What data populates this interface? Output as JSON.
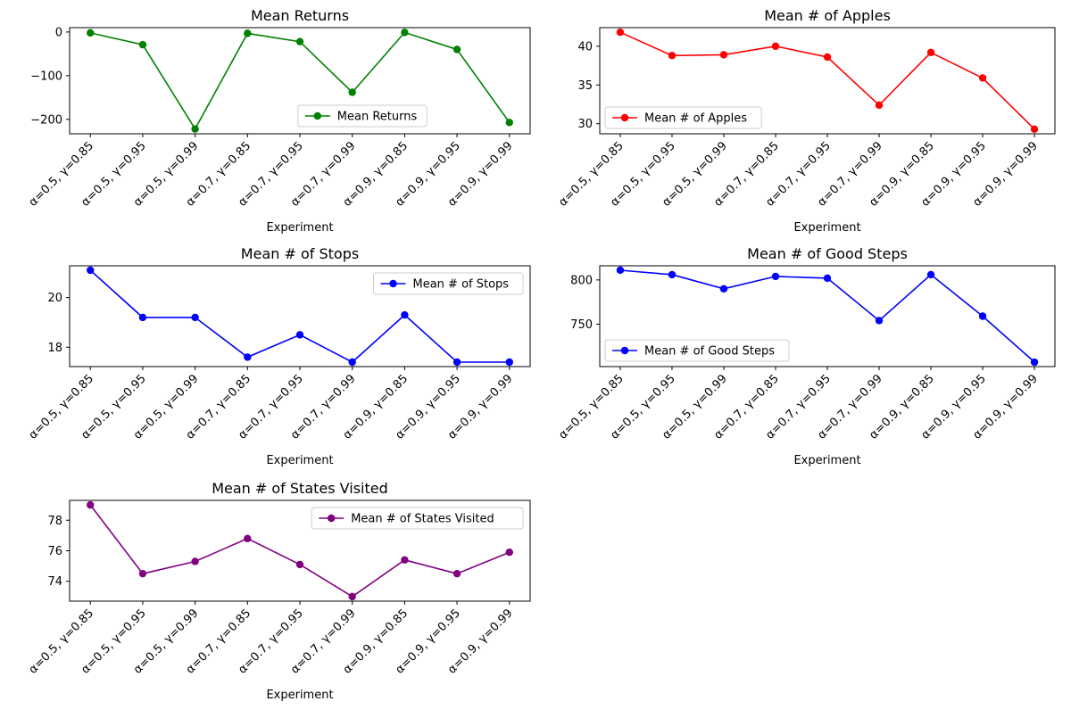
{
  "chart_data": [
    {
      "type": "line",
      "title": "Mean Returns",
      "xlabel": "Experiment",
      "ylabel": "",
      "categories": [
        "α=0.5, γ=0.85",
        "α=0.5, γ=0.95",
        "α=0.5, γ=0.99",
        "α=0.7, γ=0.85",
        "α=0.7, γ=0.95",
        "α=0.7, γ=0.99",
        "α=0.9, γ=0.85",
        "α=0.9, γ=0.95",
        "α=0.9, γ=0.99"
      ],
      "series": [
        {
          "name": "Mean Returns",
          "color": "#008000",
          "values": [
            -2,
            -29,
            -222,
            -3,
            -22,
            -138,
            -1,
            -40,
            -207
          ]
        }
      ],
      "ylim": [
        -233,
        10
      ],
      "yticks": [
        0,
        -100,
        -200
      ],
      "yticklabels": [
        "0",
        "−100",
        "−200"
      ],
      "legend": "lower-center",
      "grid": false
    },
    {
      "type": "line",
      "title": "Mean # of Apples",
      "xlabel": "Experiment",
      "ylabel": "",
      "categories": [
        "α=0.5, γ=0.85",
        "α=0.5, γ=0.95",
        "α=0.5, γ=0.99",
        "α=0.7, γ=0.85",
        "α=0.7, γ=0.95",
        "α=0.7, γ=0.99",
        "α=0.9, γ=0.85",
        "α=0.9, γ=0.95",
        "α=0.9, γ=0.99"
      ],
      "series": [
        {
          "name": "Mean # of Apples",
          "color": "#ff0000",
          "values": [
            41.8,
            38.8,
            38.9,
            40.0,
            38.6,
            32.4,
            39.2,
            35.9,
            29.3
          ]
        }
      ],
      "ylim": [
        28.7,
        42.4
      ],
      "yticks": [
        30,
        35,
        40
      ],
      "yticklabels": [
        "30",
        "35",
        "40"
      ],
      "legend": "lower-left",
      "grid": false
    },
    {
      "type": "line",
      "title": "Mean # of Stops",
      "xlabel": "Experiment",
      "ylabel": "",
      "categories": [
        "α=0.5, γ=0.85",
        "α=0.5, γ=0.95",
        "α=0.5, γ=0.99",
        "α=0.7, γ=0.85",
        "α=0.7, γ=0.95",
        "α=0.7, γ=0.99",
        "α=0.9, γ=0.85",
        "α=0.9, γ=0.95",
        "α=0.9, γ=0.99"
      ],
      "series": [
        {
          "name": "Mean # of Stops",
          "color": "#0000ff",
          "values": [
            21.1,
            19.2,
            19.2,
            17.6,
            18.5,
            17.4,
            19.3,
            17.4,
            17.4
          ]
        }
      ],
      "ylim": [
        17.22,
        21.28
      ],
      "yticks": [
        18,
        20
      ],
      "yticklabels": [
        "18",
        "20"
      ],
      "legend": "upper-right",
      "grid": false
    },
    {
      "type": "line",
      "title": "Mean # of Good Steps",
      "xlabel": "Experiment",
      "ylabel": "",
      "categories": [
        "α=0.5, γ=0.85",
        "α=0.5, γ=0.95",
        "α=0.5, γ=0.99",
        "α=0.7, γ=0.85",
        "α=0.7, γ=0.95",
        "α=0.7, γ=0.99",
        "α=0.9, γ=0.85",
        "α=0.9, γ=0.95",
        "α=0.9, γ=0.99"
      ],
      "series": [
        {
          "name": "Mean # of Good Steps",
          "color": "#0000ff",
          "values": [
            811,
            806,
            790,
            804,
            802,
            754,
            806,
            759,
            707
          ]
        }
      ],
      "ylim": [
        702,
        816
      ],
      "yticks": [
        750,
        800
      ],
      "yticklabels": [
        "750",
        "800"
      ],
      "legend": "lower-left",
      "grid": false
    },
    {
      "type": "line",
      "title": "Mean # of States Visited",
      "xlabel": "Experiment",
      "ylabel": "",
      "categories": [
        "α=0.5, γ=0.85",
        "α=0.5, γ=0.95",
        "α=0.5, γ=0.99",
        "α=0.7, γ=0.85",
        "α=0.7, γ=0.95",
        "α=0.7, γ=0.99",
        "α=0.9, γ=0.85",
        "α=0.9, γ=0.95",
        "α=0.9, γ=0.99"
      ],
      "series": [
        {
          "name": "Mean # of States Visited",
          "color": "#800080",
          "values": [
            79.0,
            74.5,
            75.3,
            76.8,
            75.1,
            73.0,
            75.4,
            74.5,
            75.9
          ]
        }
      ],
      "ylim": [
        72.7,
        79.3
      ],
      "yticks": [
        74,
        76,
        78
      ],
      "yticklabels": [
        "74",
        "76",
        "78"
      ],
      "legend": "upper-right",
      "grid": false
    }
  ]
}
